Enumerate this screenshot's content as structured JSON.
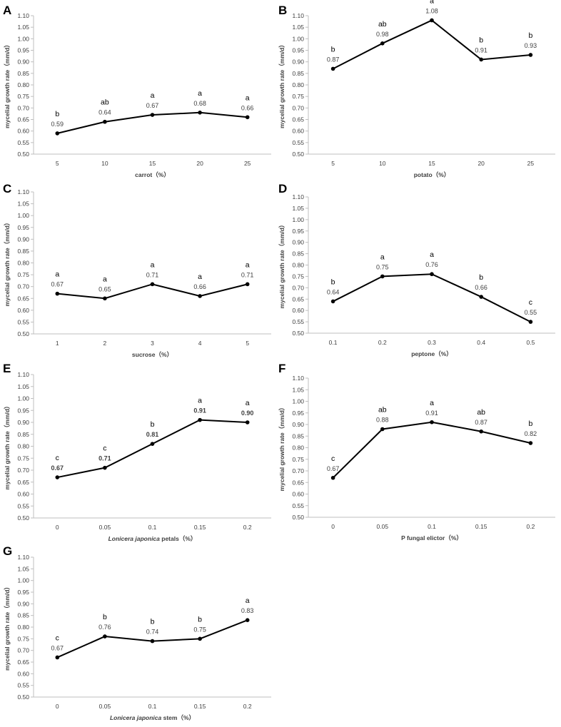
{
  "chart_data": [
    {
      "panel": "A",
      "type": "line",
      "categories": [
        "5",
        "10",
        "15",
        "20",
        "25"
      ],
      "values": [
        0.59,
        0.64,
        0.67,
        0.68,
        0.66
      ],
      "value_labels": [
        "0.59",
        "0.64",
        "0.67",
        "0.68",
        "0.66"
      ],
      "significance": [
        "b",
        "ab",
        "a",
        "a",
        "a"
      ],
      "xlabel": "carrot（%）",
      "xlabel_italic": "",
      "ylabel": "mycelial growth rate（mm/d）",
      "ylim": [
        0.5,
        1.1
      ],
      "ytick_step": 0.05,
      "yticks": [
        "0.50",
        "0.55",
        "0.60",
        "0.65",
        "0.70",
        "0.75",
        "0.80",
        "0.85",
        "0.90",
        "0.95",
        "1.00",
        "1.05",
        "1.10"
      ],
      "bold_values": false
    },
    {
      "panel": "B",
      "type": "line",
      "categories": [
        "5",
        "10",
        "15",
        "20",
        "25"
      ],
      "values": [
        0.87,
        0.98,
        1.08,
        0.91,
        0.93
      ],
      "value_labels": [
        "0.87",
        "0.98",
        "1.08",
        "0.91",
        "0.93"
      ],
      "significance": [
        "b",
        "ab",
        "a",
        "b",
        "b"
      ],
      "xlabel": "potato（%）",
      "xlabel_italic": "",
      "ylabel": "mycelial growth rate（mm/d）",
      "ylim": [
        0.5,
        1.1
      ],
      "ytick_step": 0.05,
      "yticks": [
        "0.50",
        "0.55",
        "0.60",
        "0.65",
        "0.70",
        "0.75",
        "0.80",
        "0.85",
        "0.90",
        "0.95",
        "1.00",
        "1.05",
        "1.10"
      ],
      "bold_values": false
    },
    {
      "panel": "C",
      "type": "line",
      "categories": [
        "1",
        "2",
        "3",
        "4",
        "5"
      ],
      "values": [
        0.67,
        0.65,
        0.71,
        0.66,
        0.71
      ],
      "value_labels": [
        "0.67",
        "0.65",
        "0.71",
        "0.66",
        "0.71"
      ],
      "significance": [
        "a",
        "a",
        "a",
        "a",
        "a"
      ],
      "xlabel": "sucrose（%）",
      "xlabel_italic": "",
      "ylabel": "mycelial growth rate（mm/d）",
      "ylim": [
        0.5,
        1.1
      ],
      "ytick_step": 0.05,
      "yticks": [
        "0.50",
        "0.55",
        "0.60",
        "0.65",
        "0.70",
        "0.75",
        "0.80",
        "0.85",
        "0.90",
        "0.95",
        "1.00",
        "1.05",
        "1.10"
      ],
      "bold_values": false
    },
    {
      "panel": "D",
      "type": "line",
      "categories": [
        "0.1",
        "0.2",
        "0.3",
        "0.4",
        "0.5"
      ],
      "values": [
        0.64,
        0.75,
        0.76,
        0.66,
        0.55
      ],
      "value_labels": [
        "0.64",
        "0.75",
        "0.76",
        "0.66",
        "0.55"
      ],
      "significance": [
        "b",
        "a",
        "a",
        "b",
        "c"
      ],
      "xlabel": "peptone（%）",
      "xlabel_italic": "",
      "ylabel": "mycelial growth rate（mm/d）",
      "ylim": [
        0.5,
        1.1
      ],
      "ytick_step": 0.05,
      "yticks": [
        "0.50",
        "0.55",
        "0.60",
        "0.65",
        "0.70",
        "0.75",
        "0.80",
        "0.85",
        "0.90",
        "0.95",
        "1.00",
        "1.05",
        "1.10"
      ],
      "bold_values": false
    },
    {
      "panel": "E",
      "type": "line",
      "categories": [
        "0",
        "0.05",
        "0.1",
        "0.15",
        "0.2"
      ],
      "values": [
        0.67,
        0.71,
        0.81,
        0.91,
        0.9
      ],
      "value_labels": [
        "0.67",
        "0.71",
        "0.81",
        "0.91",
        "0.90"
      ],
      "significance": [
        "c",
        "c",
        "b",
        "a",
        "a"
      ],
      "xlabel": " petals（%）",
      "xlabel_italic": "Lonicera japonica",
      "ylabel": "mycelial growth rate（mm/d）",
      "ylim": [
        0.5,
        1.1
      ],
      "ytick_step": 0.05,
      "yticks": [
        "0.50",
        "0.55",
        "0.60",
        "0.65",
        "0.70",
        "0.75",
        "0.80",
        "0.85",
        "0.90",
        "0.95",
        "1.00",
        "1.05",
        "1.10"
      ],
      "bold_values": true
    },
    {
      "panel": "F",
      "type": "line",
      "categories": [
        "0",
        "0.05",
        "0.1",
        "0.15",
        "0.2"
      ],
      "values": [
        0.67,
        0.88,
        0.91,
        0.87,
        0.82
      ],
      "value_labels": [
        "0.67",
        "0.88",
        "0.91",
        "0.87",
        "0.82"
      ],
      "significance": [
        "c",
        "ab",
        "a",
        "ab",
        "b"
      ],
      "xlabel": "P fungal elictor（%）",
      "xlabel_italic": "",
      "ylabel": "mycelial growth rate（mm/d）",
      "ylim": [
        0.5,
        1.1
      ],
      "ytick_step": 0.05,
      "yticks": [
        "0.50",
        "0.55",
        "0.60",
        "0.65",
        "0.70",
        "0.75",
        "0.80",
        "0.85",
        "0.90",
        "0.95",
        "1.00",
        "1.05",
        "1.10"
      ],
      "bold_values": false
    },
    {
      "panel": "G",
      "type": "line",
      "categories": [
        "0",
        "0.05",
        "0.1",
        "0.15",
        "0.2"
      ],
      "values": [
        0.67,
        0.76,
        0.74,
        0.75,
        0.83
      ],
      "value_labels": [
        "0.67",
        "0.76",
        "0.74",
        "0.75",
        "0.83"
      ],
      "significance": [
        "c",
        "b",
        "b",
        "b",
        "a"
      ],
      "xlabel": " stem（%）",
      "xlabel_italic": "Lonicera japonica",
      "ylabel": "mycelial growth rate（mm/d）",
      "ylim": [
        0.5,
        1.1
      ],
      "ytick_step": 0.05,
      "yticks": [
        "0.50",
        "0.55",
        "0.60",
        "0.65",
        "0.70",
        "0.75",
        "0.80",
        "0.85",
        "0.90",
        "0.95",
        "1.00",
        "1.05",
        "1.10"
      ],
      "bold_values": false
    }
  ]
}
